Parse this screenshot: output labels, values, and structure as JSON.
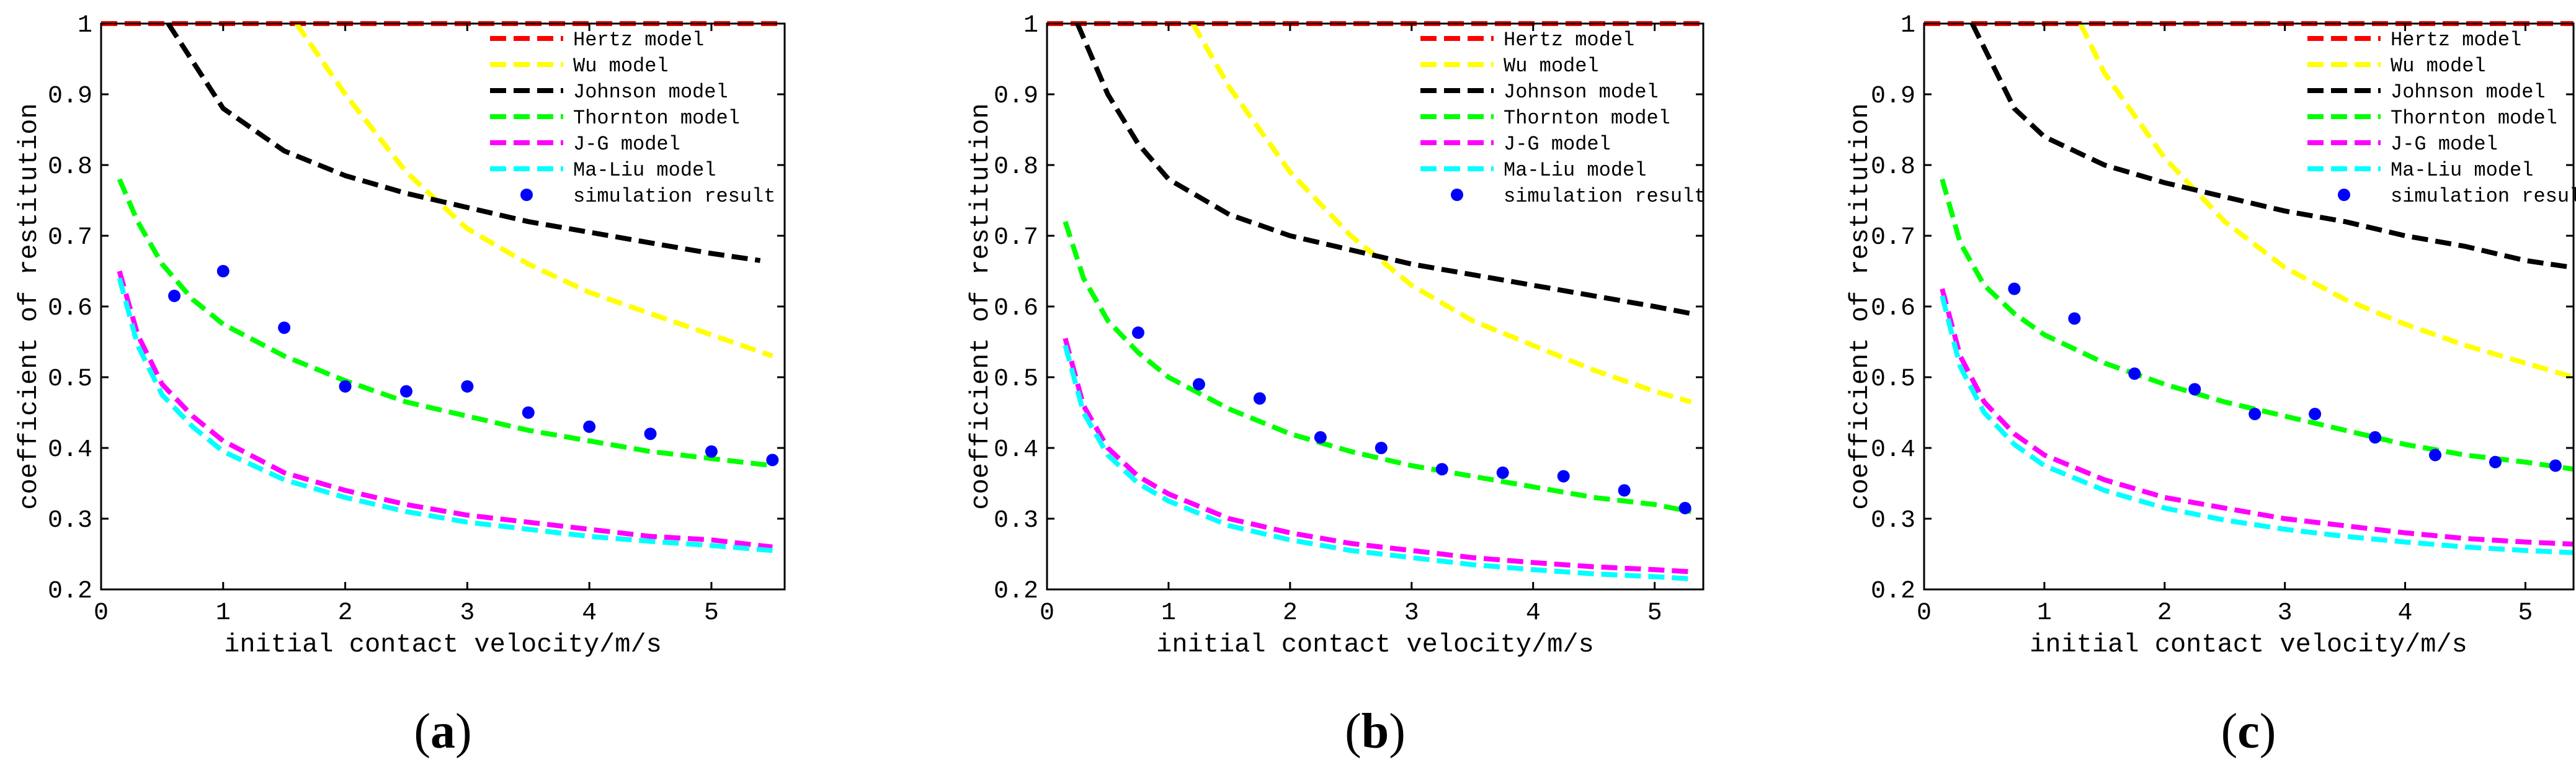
{
  "colors": {
    "Hertz model": "#ff0000",
    "Wu model": "#ffff00",
    "Johnson model": "#000000",
    "Thornton model": "#00ff00",
    "J-G model": "#ff00ff",
    "Ma-Liu model": "#00ffff",
    "simulation result": "#0000ff"
  },
  "chart_data": [
    {
      "panel": "a",
      "caption": {
        "open": "(",
        "letter": "a",
        "close": ")"
      },
      "type": "line",
      "xlabel": "initial contact velocity/m/s",
      "ylabel": "coefficient of restitution",
      "xlim": [
        0,
        5.6
      ],
      "ylim": [
        0.2,
        1.0
      ],
      "xticks": [
        0,
        1,
        2,
        3,
        4,
        5
      ],
      "yticks": [
        0.2,
        0.3,
        0.4,
        0.5,
        0.6,
        0.7,
        0.8,
        0.9,
        1
      ],
      "grid": false,
      "legend": [
        "Hertz model",
        "Wu model",
        "Johnson model",
        "Thornton model",
        "J-G model",
        "Ma-Liu model",
        "simulation result"
      ],
      "series": [
        {
          "name": "Hertz model",
          "style": "dashed",
          "x": [
            0,
            5.6
          ],
          "y": [
            1.0,
            1.0
          ]
        },
        {
          "name": "Wu model",
          "style": "dashed",
          "x": [
            1.6,
            2.0,
            2.5,
            3.0,
            3.5,
            4.0,
            4.5,
            5.0,
            5.5
          ],
          "y": [
            1.0,
            0.9,
            0.79,
            0.71,
            0.66,
            0.62,
            0.59,
            0.56,
            0.53
          ]
        },
        {
          "name": "Johnson model",
          "style": "dashed",
          "x": [
            0.55,
            1.0,
            1.5,
            2.0,
            2.5,
            3.0,
            3.5,
            4.0,
            4.5,
            5.0,
            5.4
          ],
          "y": [
            1.0,
            0.88,
            0.82,
            0.785,
            0.76,
            0.74,
            0.72,
            0.705,
            0.69,
            0.675,
            0.665
          ]
        },
        {
          "name": "Thornton model",
          "style": "dashed",
          "x": [
            0.15,
            0.3,
            0.5,
            0.75,
            1.0,
            1.5,
            2.0,
            2.5,
            3.0,
            3.5,
            4.0,
            4.5,
            5.0,
            5.5
          ],
          "y": [
            0.78,
            0.72,
            0.66,
            0.61,
            0.575,
            0.53,
            0.495,
            0.465,
            0.445,
            0.425,
            0.41,
            0.395,
            0.385,
            0.375
          ]
        },
        {
          "name": "J-G model",
          "style": "dashed",
          "x": [
            0.15,
            0.3,
            0.5,
            0.75,
            1.0,
            1.5,
            2.0,
            2.5,
            3.0,
            3.5,
            4.0,
            4.5,
            5.0,
            5.5
          ],
          "y": [
            0.65,
            0.56,
            0.49,
            0.445,
            0.41,
            0.365,
            0.34,
            0.32,
            0.305,
            0.295,
            0.285,
            0.275,
            0.27,
            0.26
          ]
        },
        {
          "name": "Ma-Liu model",
          "style": "dashed",
          "x": [
            0.15,
            0.3,
            0.5,
            0.75,
            1.0,
            1.5,
            2.0,
            2.5,
            3.0,
            3.5,
            4.0,
            4.5,
            5.0,
            5.5
          ],
          "y": [
            0.64,
            0.545,
            0.475,
            0.43,
            0.395,
            0.355,
            0.33,
            0.31,
            0.295,
            0.285,
            0.275,
            0.268,
            0.262,
            0.255
          ]
        },
        {
          "name": "simulation result",
          "style": "markers",
          "x": [
            0.6,
            1.0,
            1.5,
            2.0,
            2.5,
            3.0,
            3.5,
            4.0,
            4.5,
            5.0,
            5.5
          ],
          "y": [
            0.615,
            0.65,
            0.57,
            0.487,
            0.48,
            0.487,
            0.45,
            0.43,
            0.42,
            0.395,
            0.383
          ]
        }
      ]
    },
    {
      "panel": "b",
      "caption": {
        "open": "(",
        "letter": "b",
        "close": ")"
      },
      "type": "line",
      "xlabel": "initial contact velocity/m/s",
      "ylabel": "coefficient of restitution",
      "xlim": [
        0,
        5.4
      ],
      "ylim": [
        0.2,
        1.0
      ],
      "xticks": [
        0,
        1,
        2,
        3,
        4,
        5
      ],
      "yticks": [
        0.2,
        0.3,
        0.4,
        0.5,
        0.6,
        0.7,
        0.8,
        0.9,
        1
      ],
      "grid": false,
      "legend": [
        "Hertz model",
        "Wu model",
        "Johnson model",
        "Thornton model",
        "J-G model",
        "Ma-Liu model",
        "simulation result"
      ],
      "series": [
        {
          "name": "Hertz model",
          "style": "dashed",
          "x": [
            0,
            5.4
          ],
          "y": [
            1.0,
            1.0
          ]
        },
        {
          "name": "Wu model",
          "style": "dashed",
          "x": [
            1.2,
            1.5,
            2.0,
            2.5,
            3.0,
            3.5,
            4.0,
            4.5,
            5.0,
            5.3
          ],
          "y": [
            1.0,
            0.91,
            0.79,
            0.7,
            0.63,
            0.58,
            0.545,
            0.51,
            0.48,
            0.465
          ]
        },
        {
          "name": "Johnson model",
          "style": "dashed",
          "x": [
            0.25,
            0.5,
            0.75,
            1.0,
            1.5,
            2.0,
            2.5,
            3.0,
            3.5,
            4.0,
            4.5,
            5.0,
            5.3
          ],
          "y": [
            1.0,
            0.9,
            0.83,
            0.78,
            0.73,
            0.7,
            0.68,
            0.66,
            0.645,
            0.63,
            0.615,
            0.6,
            0.59
          ]
        },
        {
          "name": "Thornton model",
          "style": "dashed",
          "x": [
            0.15,
            0.3,
            0.5,
            0.75,
            1.0,
            1.5,
            2.0,
            2.5,
            3.0,
            3.5,
            4.0,
            4.5,
            5.0,
            5.3
          ],
          "y": [
            0.72,
            0.64,
            0.58,
            0.535,
            0.5,
            0.455,
            0.42,
            0.395,
            0.375,
            0.36,
            0.345,
            0.33,
            0.32,
            0.31
          ]
        },
        {
          "name": "J-G model",
          "style": "dashed",
          "x": [
            0.15,
            0.3,
            0.5,
            0.75,
            1.0,
            1.5,
            2.0,
            2.5,
            3.0,
            3.5,
            4.0,
            4.5,
            5.0,
            5.3
          ],
          "y": [
            0.555,
            0.46,
            0.4,
            0.36,
            0.335,
            0.3,
            0.28,
            0.265,
            0.255,
            0.245,
            0.238,
            0.232,
            0.228,
            0.225
          ]
        },
        {
          "name": "Ma-Liu model",
          "style": "dashed",
          "x": [
            0.15,
            0.3,
            0.5,
            0.75,
            1.0,
            1.5,
            2.0,
            2.5,
            3.0,
            3.5,
            4.0,
            4.5,
            5.0,
            5.3
          ],
          "y": [
            0.545,
            0.45,
            0.39,
            0.35,
            0.325,
            0.29,
            0.27,
            0.255,
            0.245,
            0.235,
            0.228,
            0.222,
            0.218,
            0.215
          ]
        },
        {
          "name": "simulation result",
          "style": "markers",
          "x": [
            0.75,
            1.25,
            1.75,
            2.25,
            2.75,
            3.25,
            3.75,
            4.25,
            4.75,
            5.25
          ],
          "y": [
            0.563,
            0.49,
            0.47,
            0.415,
            0.4,
            0.37,
            0.365,
            0.36,
            0.34,
            0.315
          ]
        }
      ]
    },
    {
      "panel": "c",
      "caption": {
        "open": "(",
        "letter": "c",
        "close": ")"
      },
      "type": "line",
      "xlabel": "initial contact velocity/m/s",
      "ylabel": "coefficient of restitution",
      "xlim": [
        0,
        5.4
      ],
      "ylim": [
        0.2,
        1.0
      ],
      "xticks": [
        0,
        1,
        2,
        3,
        4,
        5
      ],
      "yticks": [
        0.2,
        0.3,
        0.4,
        0.5,
        0.6,
        0.7,
        0.8,
        0.9,
        1
      ],
      "grid": false,
      "legend": [
        "Hertz model",
        "Wu model",
        "Johnson model",
        "Thornton model",
        "J-G model",
        "Ma-Liu model",
        "simulation result"
      ],
      "series": [
        {
          "name": "Hertz model",
          "style": "dashed",
          "x": [
            0,
            5.4
          ],
          "y": [
            1.0,
            1.0
          ]
        },
        {
          "name": "Wu model",
          "style": "dashed",
          "x": [
            1.3,
            1.5,
            2.0,
            2.5,
            3.0,
            3.5,
            4.0,
            4.5,
            5.0,
            5.4
          ],
          "y": [
            1.0,
            0.93,
            0.81,
            0.72,
            0.655,
            0.61,
            0.575,
            0.545,
            0.52,
            0.5
          ]
        },
        {
          "name": "Johnson model",
          "style": "dashed",
          "x": [
            0.4,
            0.75,
            1.0,
            1.5,
            2.0,
            2.5,
            3.0,
            3.5,
            4.0,
            4.5,
            5.0,
            5.4
          ],
          "y": [
            1.0,
            0.88,
            0.84,
            0.8,
            0.775,
            0.755,
            0.735,
            0.72,
            0.7,
            0.685,
            0.665,
            0.655
          ]
        },
        {
          "name": "Thornton model",
          "style": "dashed",
          "x": [
            0.15,
            0.3,
            0.5,
            0.75,
            1.0,
            1.5,
            2.0,
            2.5,
            3.0,
            3.5,
            4.0,
            4.5,
            5.0,
            5.4
          ],
          "y": [
            0.78,
            0.69,
            0.63,
            0.59,
            0.56,
            0.52,
            0.49,
            0.465,
            0.445,
            0.425,
            0.405,
            0.39,
            0.38,
            0.37
          ]
        },
        {
          "name": "J-G model",
          "style": "dashed",
          "x": [
            0.15,
            0.3,
            0.5,
            0.75,
            1.0,
            1.5,
            2.0,
            2.5,
            3.0,
            3.5,
            4.0,
            4.5,
            5.0,
            5.4
          ],
          "y": [
            0.625,
            0.53,
            0.465,
            0.42,
            0.39,
            0.355,
            0.33,
            0.315,
            0.3,
            0.29,
            0.28,
            0.272,
            0.267,
            0.264
          ]
        },
        {
          "name": "Ma-Liu model",
          "style": "dashed",
          "x": [
            0.15,
            0.3,
            0.5,
            0.75,
            1.0,
            1.5,
            2.0,
            2.5,
            3.0,
            3.5,
            4.0,
            4.5,
            5.0,
            5.4
          ],
          "y": [
            0.615,
            0.515,
            0.45,
            0.405,
            0.375,
            0.34,
            0.315,
            0.298,
            0.285,
            0.275,
            0.267,
            0.26,
            0.255,
            0.252
          ]
        },
        {
          "name": "simulation result",
          "style": "markers",
          "x": [
            0.75,
            1.25,
            1.75,
            2.25,
            2.75,
            3.25,
            3.75,
            4.25,
            4.75,
            5.25
          ],
          "y": [
            0.625,
            0.583,
            0.505,
            0.483,
            0.448,
            0.448,
            0.415,
            0.39,
            0.38,
            0.375
          ]
        }
      ]
    }
  ]
}
